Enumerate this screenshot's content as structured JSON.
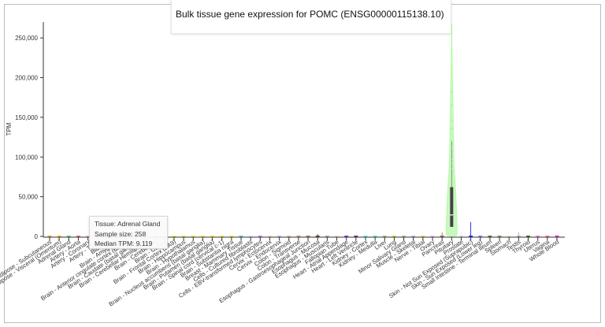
{
  "chart_data": {
    "type": "violin",
    "title": "Bulk tissue gene expression for POMC (ENSG00000115138.10)",
    "xlabel": "",
    "ylabel": "TPM",
    "ylim": [
      0,
      270000
    ],
    "yticks": [
      0,
      50000,
      100000,
      150000,
      200000,
      250000
    ],
    "ytick_labels": [
      "0",
      "50,000",
      "100,000",
      "150,000",
      "200,000",
      "250,000"
    ],
    "categories": [
      "Adipose - Subcutaneous",
      "Adipose - Visceral (Omentum)",
      "Adrenal Gland",
      "Artery - Aorta",
      "Artery - Coronary",
      "Artery - Tibial",
      "Bladder",
      "Brain - Amygdala",
      "Brain - Anterior cingulate cortex (BA24)",
      "Brain - Caudate (basal ganglia)",
      "Brain - Cerebellar Hemisphere",
      "Brain - Cerebellum",
      "Brain - Cortex",
      "Brain - Frontal Cortex (BA9)",
      "Brain - Hippocampus",
      "Brain - Hypothalamus",
      "Brain - Nucleus accumbens (basal ganglia)",
      "Brain - Putamen (basal ganglia)",
      "Brain - Spinal cord (cervical c-1)",
      "Brain - Substantia nigra",
      "Breast - Mammary Tissue",
      "Cells - Cultured fibroblasts",
      "Cells - EBV-transformed lymphocytes",
      "Cervix - Ectocervix",
      "Cervix - Endocervix",
      "Colon - Sigmoid",
      "Colon - Transverse",
      "Esophagus - Gastroesophageal Junction",
      "Esophagus - Mucosa",
      "Esophagus - Muscularis",
      "Fallopian Tube",
      "Heart - Atrial Appendage",
      "Heart - Left Ventricle",
      "Kidney - Cortex",
      "Kidney - Medulla",
      "Liver",
      "Lung",
      "Minor Salivary Gland",
      "Muscle - Skeletal",
      "Nerve - Tibial",
      "Ovary",
      "Pancreas",
      "Pituitary",
      "Prostate",
      "Skin - Not Sun Exposed (Suprapubic)",
      "Skin - Sun Exposed (Lower leg)",
      "Small Intestine - Terminal Ileum",
      "Spleen",
      "Stomach",
      "Testis",
      "Thyroid",
      "Uterus",
      "Vagina",
      "Whole Blood"
    ],
    "xtick_labels": [
      "Adipose - Subcutaneous",
      "Adipose - Visceral (Omentum)",
      "Adrenal Gland",
      "Artery - Aorta",
      "Artery - Coronary",
      "Artery - Tibial",
      "Bladder",
      "Brain - Amygdala",
      "Brain - Anterior cingulate cortex (BA24)",
      "Brain - Caudate (basal ganglia)",
      "Brain - Cerebellar Hemisphere",
      "Brain - Cerebellum",
      "Brain - Cortex",
      "Brain - Frontal Cortex (BA9)",
      "Brain - Hippocampus",
      "Brain - Hypothalamus",
      "Brain - Nucleus accumbens (basal ganglia)",
      "Brain - Putamen (basal ganglia)",
      "Brain - Spinal cord (cervical c-1)",
      "Brain - Substantia nigra",
      "Breast - Mammary Tissue",
      "Cells - Cultured fibroblasts",
      "Cells - EBV-transformed lymphocytes",
      "Cervix - Ectocervix",
      "Cervix - Endocervix",
      "Colon - Sigmoid",
      "Colon - Transverse",
      "Esophagus - Gastroesophageal Junction",
      "Esophagus - Mucosa",
      "Esophagus - Muscularis",
      "Fallopian Tube",
      "Heart - Atrial Appendage",
      "Heart - Left Ventricle",
      "Kidney - Cortex",
      "Kidney - Medulla",
      "Liver",
      "Lung",
      "Minor Salivary Gland",
      "Muscle - Skeletal",
      "Nerve - Tibial",
      "Ovary",
      "Pancreas",
      "Pituitary",
      "Prostate",
      "Skin - Not Sun Exposed (Suprapubic)",
      "Skin - Sun Exposed (Lower leg)",
      "Small Intestine - Terminal Ileum",
      "Spleen",
      "Stomach",
      "Testis",
      "Thyroid",
      "Uterus",
      "Vagina",
      "Whole Blood"
    ],
    "pituitary": {
      "median": 27000,
      "q1": 12000,
      "q3": 62000,
      "max": 268000,
      "outliers": [
        182000,
        165000,
        146000,
        136000,
        120000,
        112000,
        97000,
        92000,
        85000
      ]
    },
    "small_spikes": [
      {
        "category": "Esophagus - Mucosa",
        "max": 3000
      },
      {
        "category": "Colon - Transverse",
        "max": 2000
      },
      {
        "category": "Prostate",
        "max": 6000
      },
      {
        "category": "Pancreas",
        "max": 5000
      },
      {
        "category": "Skin - Not Sun Exposed (Suprapubic)",
        "max": 18000
      },
      {
        "category": "Testis",
        "max": 5000
      }
    ],
    "grid": false,
    "legend": "none",
    "colors": {
      "Adipose - Subcutaneous": "#ff9900",
      "Adipose - Visceral (Omentum)": "#ffaa00",
      "Adrenal Gland": "#33dd33",
      "Artery - Aorta": "#ff5555",
      "Artery - Coronary": "#ffaa99",
      "Artery - Tibial": "#ff0000",
      "Bladder": "#aa0000",
      "Brain - Amygdala": "#eeee00",
      "Brain - Anterior cingulate cortex (BA24)": "#eeee00",
      "Brain - Caudate (basal ganglia)": "#eeee00",
      "Brain - Cerebellar Hemisphere": "#eeee00",
      "Brain - Cerebellum": "#eeee00",
      "Brain - Cortex": "#eeee00",
      "Brain - Frontal Cortex (BA9)": "#eeee00",
      "Brain - Hippocampus": "#eeee00",
      "Brain - Hypothalamus": "#eeee00",
      "Brain - Nucleus accumbens (basal ganglia)": "#eeee00",
      "Brain - Putamen (basal ganglia)": "#eeee00",
      "Brain - Spinal cord (cervical c-1)": "#eeee00",
      "Brain - Substantia nigra": "#eeee00",
      "Breast - Mammary Tissue": "#33cccc",
      "Cells - Cultured fibroblasts": "#aaeeff",
      "Cells - EBV-transformed lymphocytes": "#cc66ff",
      "Cervix - Ectocervix": "#ffcccc",
      "Cervix - Endocervix": "#ccaaff",
      "Colon - Sigmoid": "#ddbb88",
      "Colon - Transverse": "#cc9955",
      "Esophagus - Gastroesophageal Junction": "#8b7355",
      "Esophagus - Mucosa": "#552200",
      "Esophagus - Muscularis": "#bb9988",
      "Fallopian Tube": "#ffcccc",
      "Heart - Atrial Appendage": "#9900ff",
      "Heart - Left Ventricle": "#660099",
      "Kidney - Cortex": "#22ffdd",
      "Kidney - Medulla": "#22ffdd",
      "Liver": "#aabb66",
      "Lung": "#99ff00",
      "Minor Salivary Gland": "#99bb88",
      "Muscle - Skeletal": "#aaaaff",
      "Nerve - Tibial": "#ffd700",
      "Ovary": "#ffaaff",
      "Pancreas": "#995522",
      "Pituitary": "#aaff99",
      "Prostate": "#dddddd",
      "Skin - Not Sun Exposed (Suprapubic)": "#0000ff",
      "Skin - Sun Exposed (Lower leg)": "#7777ff",
      "Small Intestine - Terminal Ileum": "#555522",
      "Spleen": "#778855",
      "Stomach": "#ffdd99",
      "Testis": "#aaaaaa",
      "Thyroid": "#006600",
      "Uterus": "#ff66ff",
      "Vagina": "#ff5599",
      "Whole Blood": "#ff00bb"
    }
  },
  "tooltip": {
    "line1": "Tissue: Adrenal Gland",
    "line2": "Sample size: 258",
    "line3": "Median TPM: 9.119"
  }
}
